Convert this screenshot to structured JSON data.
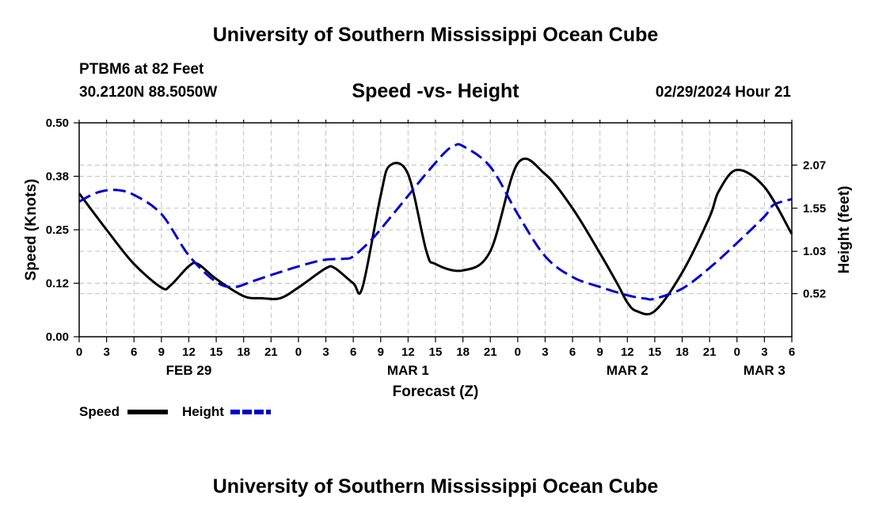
{
  "page": {
    "title_top": "University of Southern Mississippi Ocean Cube",
    "title_bottom": "University of Southern Mississippi Ocean Cube",
    "station": "PTBM6 at 82 Feet",
    "coords": "30.2120N  88.5050W",
    "datetime": "02/29/2024 Hour 21"
  },
  "chart_data": {
    "type": "line",
    "title": "Speed -vs- Height",
    "xlabel": "Forecast (Z)",
    "ylabel": "Speed (Knots)",
    "y2label": "Height (feet)",
    "xlim": [
      0,
      78
    ],
    "ylim": [
      0,
      0.5
    ],
    "y2lim": [
      0,
      2.58
    ],
    "x_ticks": [
      0,
      3,
      6,
      9,
      12,
      15,
      18,
      21,
      24,
      27,
      30,
      33,
      36,
      39,
      42,
      45,
      48,
      51,
      54,
      57,
      60,
      63,
      66,
      69,
      72,
      75,
      78
    ],
    "x_tick_labels": [
      "0",
      "3",
      "6",
      "9",
      "12",
      "15",
      "18",
      "21",
      "0",
      "3",
      "6",
      "9",
      "12",
      "15",
      "18",
      "21",
      "0",
      "3",
      "6",
      "9",
      "12",
      "15",
      "18",
      "21",
      "0",
      "3",
      "6"
    ],
    "y_ticks": [
      0.0,
      0.125,
      0.25,
      0.375,
      0.5
    ],
    "y_tick_labels": [
      "0.00",
      "0.12",
      "0.25",
      "0.38",
      "0.50"
    ],
    "y2_ticks": [
      0.52,
      1.03,
      1.55,
      2.07
    ],
    "y2_tick_labels": [
      "0.52",
      "1.03",
      "1.55",
      "2.07"
    ],
    "day_labels": [
      {
        "x": 12,
        "label": "FEB 29"
      },
      {
        "x": 36,
        "label": "MAR 1"
      },
      {
        "x": 60,
        "label": "MAR 2"
      },
      {
        "x": 75,
        "label": "MAR 3"
      }
    ],
    "grid": true,
    "legend": [
      {
        "name": "Speed",
        "color": "#000000",
        "dashed": false
      },
      {
        "name": "Height",
        "color": "#0000cc",
        "dashed": true
      }
    ],
    "series": [
      {
        "name": "Speed",
        "axis": "left",
        "color": "#000000",
        "x": [
          0,
          3,
          6,
          9,
          10,
          12,
          13,
          15,
          18,
          20,
          22,
          24,
          27,
          28,
          30,
          31,
          33,
          34,
          36,
          38,
          39,
          42,
          45,
          48,
          51,
          54,
          57,
          59,
          60,
          61,
          63,
          66,
          69,
          70,
          72,
          75,
          78
        ],
        "y": [
          0.335,
          0.25,
          0.17,
          0.115,
          0.12,
          0.165,
          0.17,
          0.135,
          0.095,
          0.09,
          0.09,
          0.115,
          0.16,
          0.16,
          0.125,
          0.115,
          0.33,
          0.4,
          0.38,
          0.2,
          0.17,
          0.155,
          0.2,
          0.405,
          0.38,
          0.3,
          0.195,
          0.12,
          0.08,
          0.06,
          0.06,
          0.15,
          0.28,
          0.34,
          0.39,
          0.35,
          0.24
        ]
      },
      {
        "name": "Height",
        "axis": "right",
        "color": "#0000cc",
        "x": [
          0,
          2,
          4,
          6,
          9,
          12,
          15,
          17,
          19,
          22,
          25,
          27,
          29,
          30,
          32,
          34,
          36,
          38,
          40,
          41,
          42,
          45,
          48,
          51,
          54,
          57,
          60,
          62,
          63,
          66,
          69,
          72,
          75,
          76,
          78
        ],
        "y": [
          1.63,
          1.74,
          1.77,
          1.71,
          1.48,
          0.98,
          0.66,
          0.6,
          0.67,
          0.78,
          0.88,
          0.93,
          0.94,
          0.97,
          1.17,
          1.43,
          1.7,
          1.97,
          2.22,
          2.3,
          2.3,
          2.05,
          1.48,
          0.97,
          0.72,
          0.6,
          0.5,
          0.46,
          0.46,
          0.58,
          0.83,
          1.13,
          1.45,
          1.59,
          1.66
        ]
      }
    ]
  }
}
